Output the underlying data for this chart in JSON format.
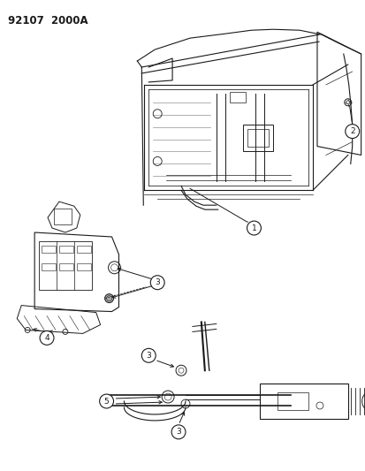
{
  "title": "92107  2000A",
  "bg_color": "#ffffff",
  "line_color": "#1a1a1a",
  "figsize": [
    4.14,
    5.33
  ],
  "dpi": 100
}
